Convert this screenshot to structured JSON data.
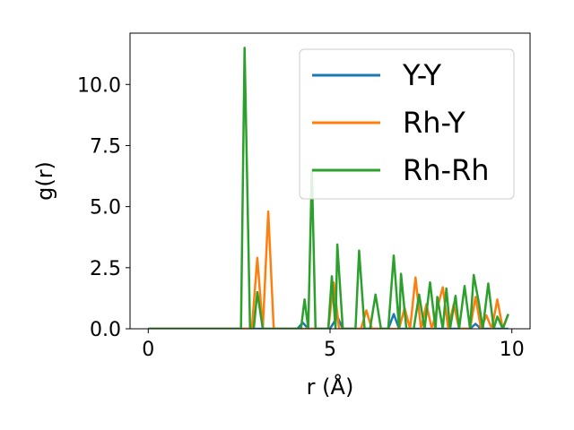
{
  "chart_data": {
    "type": "line",
    "title": "",
    "xlabel": "r (Å)",
    "ylabel": "g(r)",
    "xlim": [
      -0.5,
      10.5
    ],
    "ylim": [
      0,
      12.1
    ],
    "xticks": [
      0,
      5,
      10
    ],
    "xtick_labels": [
      "0",
      "5",
      "10"
    ],
    "yticks": [
      0,
      2.5,
      5,
      7.5,
      10
    ],
    "ytick_labels": [
      "0.0",
      "2.5",
      "5.0",
      "7.5",
      "10.0"
    ],
    "grid": false,
    "legend_position": "top-right",
    "series": [
      {
        "name": "Y-Y",
        "color": "#1f77b4",
        "points": [
          [
            0,
            0
          ],
          [
            4.1,
            0
          ],
          [
            4.25,
            0.25
          ],
          [
            4.4,
            0
          ],
          [
            5.0,
            0
          ],
          [
            5.2,
            0.5
          ],
          [
            5.35,
            0
          ],
          [
            6.6,
            0
          ],
          [
            6.75,
            0.6
          ],
          [
            6.9,
            0
          ],
          [
            8.85,
            0
          ],
          [
            9.0,
            0.2
          ],
          [
            9.15,
            0
          ],
          [
            9.9,
            0
          ]
        ]
      },
      {
        "name": "Rh-Y",
        "color": "#ff7f0e",
        "points": [
          [
            0,
            0
          ],
          [
            2.85,
            0
          ],
          [
            3.0,
            2.9
          ],
          [
            3.15,
            0
          ],
          [
            3.3,
            4.8
          ],
          [
            3.45,
            0
          ],
          [
            4.95,
            0
          ],
          [
            5.1,
            1.9
          ],
          [
            5.25,
            0
          ],
          [
            5.85,
            0
          ],
          [
            6.0,
            0.75
          ],
          [
            6.15,
            0
          ],
          [
            6.9,
            0
          ],
          [
            7.05,
            0.85
          ],
          [
            7.2,
            0
          ],
          [
            7.35,
            2.1
          ],
          [
            7.5,
            0
          ],
          [
            7.65,
            1.0
          ],
          [
            7.8,
            0
          ],
          [
            8.1,
            1.7
          ],
          [
            8.25,
            0
          ],
          [
            8.4,
            1.0
          ],
          [
            8.55,
            0
          ],
          [
            8.85,
            0
          ],
          [
            9.0,
            1.3
          ],
          [
            9.15,
            0
          ],
          [
            9.3,
            0.55
          ],
          [
            9.45,
            0
          ],
          [
            9.6,
            1.2
          ],
          [
            9.75,
            0
          ],
          [
            9.9,
            0.6
          ]
        ]
      },
      {
        "name": "Rh-Rh",
        "color": "#2ca02c",
        "points": [
          [
            0,
            0
          ],
          [
            2.55,
            0
          ],
          [
            2.65,
            11.5
          ],
          [
            2.8,
            0
          ],
          [
            2.9,
            0
          ],
          [
            3.0,
            1.5
          ],
          [
            3.15,
            0
          ],
          [
            4.2,
            0
          ],
          [
            4.3,
            1.2
          ],
          [
            4.4,
            0
          ],
          [
            4.5,
            6.5
          ],
          [
            4.6,
            0
          ],
          [
            4.95,
            0
          ],
          [
            5.05,
            2.15
          ],
          [
            5.15,
            0
          ],
          [
            5.2,
            3.45
          ],
          [
            5.35,
            0
          ],
          [
            5.7,
            0
          ],
          [
            5.8,
            3.2
          ],
          [
            5.95,
            0
          ],
          [
            6.1,
            0
          ],
          [
            6.25,
            1.4
          ],
          [
            6.4,
            0
          ],
          [
            6.6,
            0
          ],
          [
            6.75,
            3.0
          ],
          [
            6.9,
            0
          ],
          [
            6.95,
            2.25
          ],
          [
            7.1,
            0
          ],
          [
            7.3,
            0
          ],
          [
            7.45,
            1.4
          ],
          [
            7.6,
            0
          ],
          [
            7.75,
            1.9
          ],
          [
            7.9,
            0
          ],
          [
            7.95,
            1.3
          ],
          [
            8.1,
            0
          ],
          [
            8.2,
            1.65
          ],
          [
            8.3,
            0
          ],
          [
            8.45,
            1.35
          ],
          [
            8.55,
            0
          ],
          [
            8.7,
            1.75
          ],
          [
            8.85,
            0
          ],
          [
            8.95,
            2.2
          ],
          [
            9.1,
            1.0
          ],
          [
            9.2,
            0
          ],
          [
            9.35,
            1.85
          ],
          [
            9.5,
            0
          ],
          [
            9.6,
            0.5
          ],
          [
            9.75,
            0
          ],
          [
            9.9,
            0.6
          ]
        ]
      }
    ]
  }
}
